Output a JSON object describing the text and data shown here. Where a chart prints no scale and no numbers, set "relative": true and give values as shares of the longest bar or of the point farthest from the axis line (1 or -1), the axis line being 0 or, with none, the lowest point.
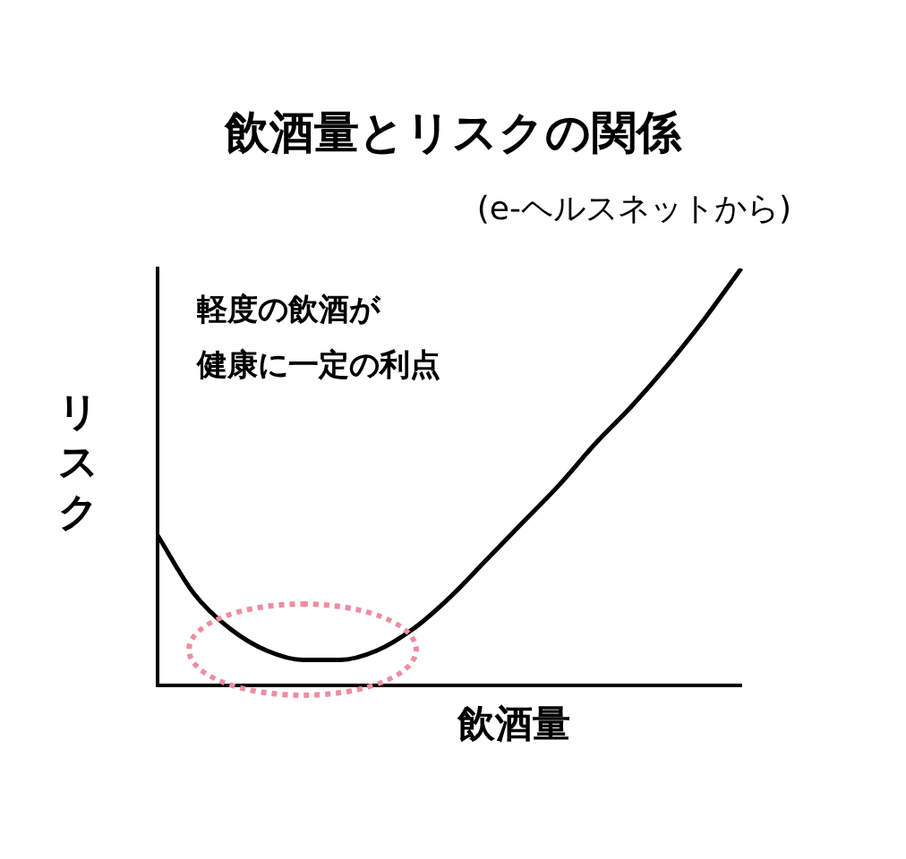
{
  "chart_data": {
    "type": "line",
    "title": "飲酒量とリスクの関係",
    "subtitle": "(e-ヘルスネットから)",
    "xlabel": "飲酒量",
    "ylabel": "リスク",
    "annotations": [
      "軽度の飲酒が",
      "健康に一定の利点"
    ],
    "relative": true,
    "marker": "none",
    "line_style": "solid",
    "grid": false,
    "legend": false,
    "categories": [
      null,
      null,
      null,
      null,
      null,
      null,
      null,
      null,
      null,
      null,
      null,
      null,
      null,
      null,
      null,
      null,
      null
    ],
    "series": [
      {
        "color": "#000000",
        "values": [
          0.36,
          0.22,
          0.135,
          0.083,
          0.061,
          0.061,
          0.083,
          0.135,
          0.21,
          0.3,
          0.39,
          0.48,
          0.58,
          0.67,
          0.77,
          0.88,
          1
        ]
      }
    ]
  }
}
